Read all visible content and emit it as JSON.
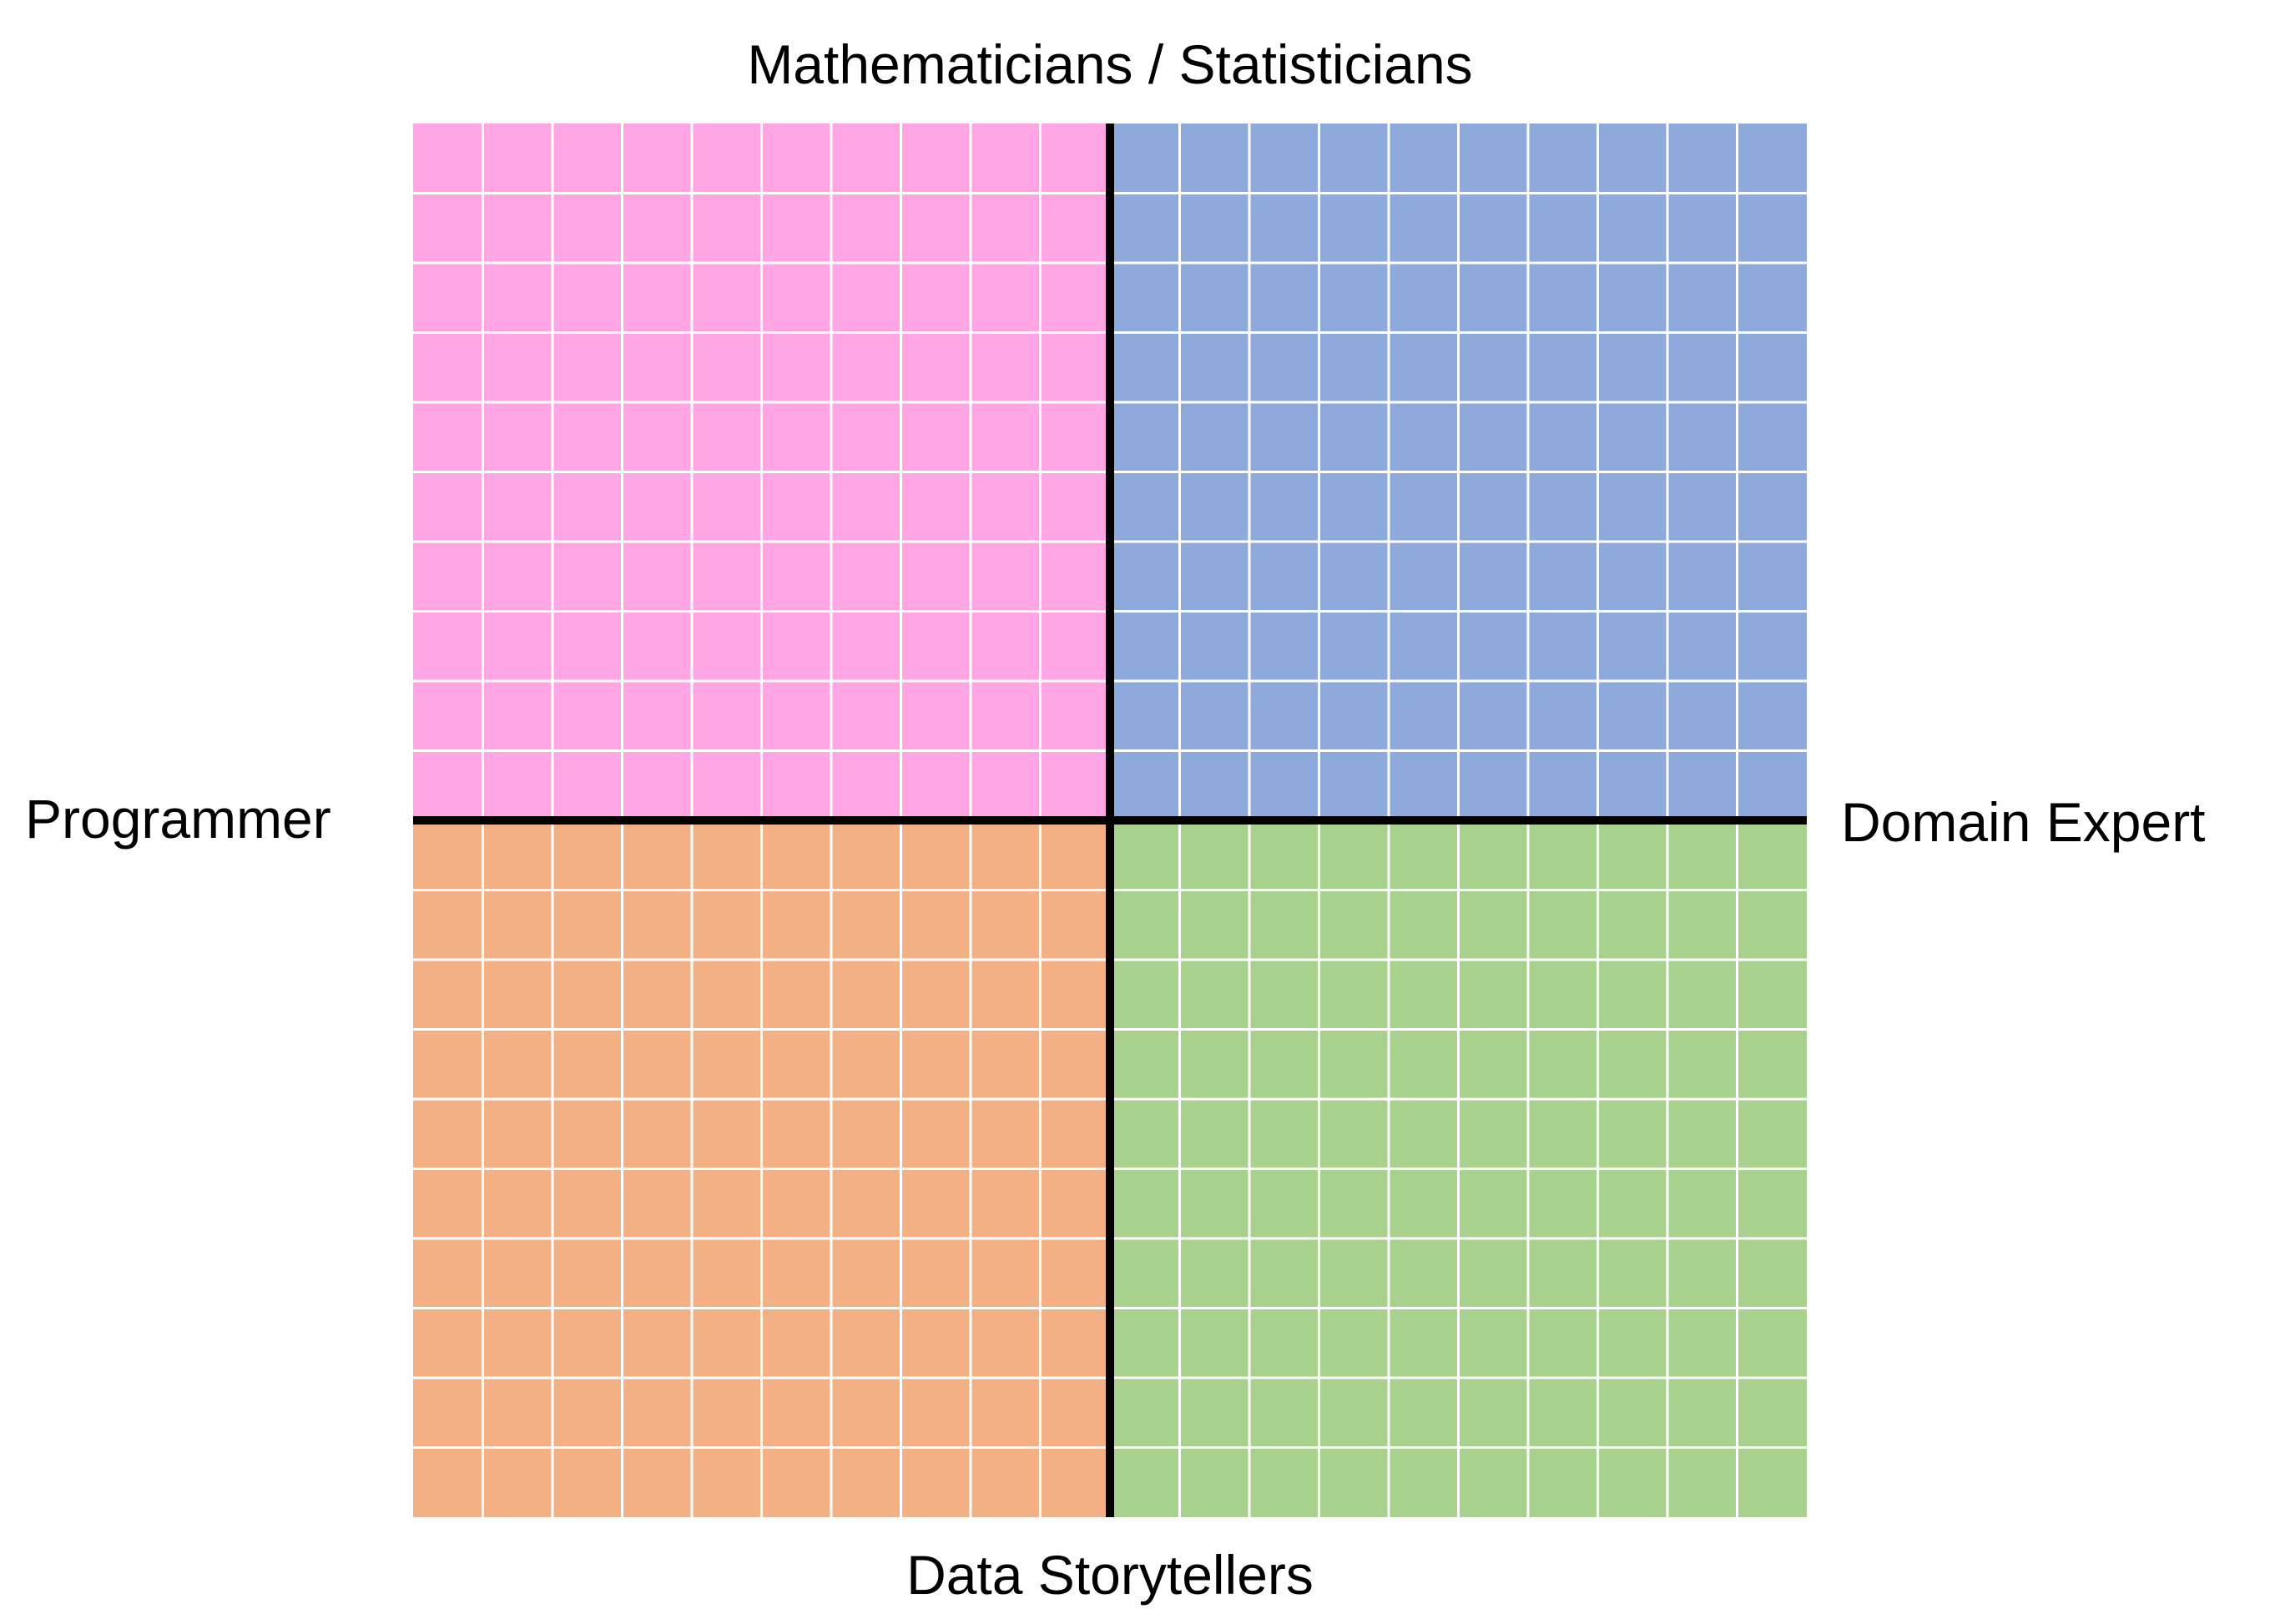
{
  "labels": {
    "top": "Mathematicians / Statisticians",
    "bottom": "Data Storytellers",
    "left": "Programmer",
    "right": "Domain Expert"
  },
  "grid": {
    "cells_per_side": 20
  },
  "quadrants": [
    {
      "position": "top-left",
      "color": "#FFA5E4"
    },
    {
      "position": "top-right",
      "color": "#8EAADC"
    },
    {
      "position": "bottom-left",
      "color": "#F4B085"
    },
    {
      "position": "bottom-right",
      "color": "#A9D18E"
    }
  ],
  "colors": {
    "grid_line": "#ffffff",
    "axis": "#000000"
  }
}
